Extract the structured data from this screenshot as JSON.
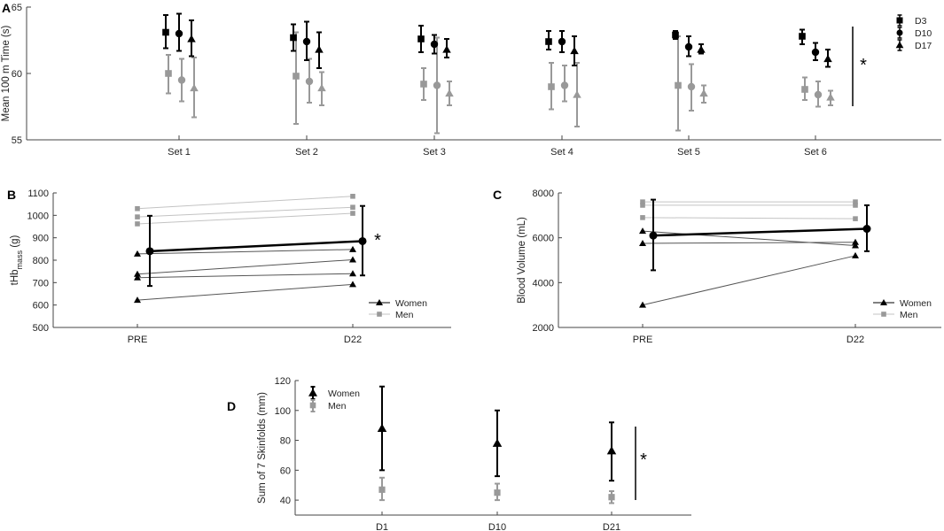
{
  "colors": {
    "black": "#000000",
    "gray": "#999999",
    "lightgray": "#c3c3c3",
    "axis": "#444444"
  },
  "chart_data": [
    {
      "id": "A",
      "panel_label": "A",
      "type": "scatter",
      "ylabel": "Mean 100 m Time (s)",
      "yticks": [
        "55",
        "60",
        "65"
      ],
      "ylim": [
        55,
        65
      ],
      "categories": [
        "Set 1",
        "Set 2",
        "Set 3",
        "Set 4",
        "Set 5",
        "Set 6"
      ],
      "legend": [
        "D3",
        "D10",
        "D17"
      ],
      "annotation": "*",
      "series": [
        {
          "name": "D3 Women",
          "day": "D3",
          "group": "Women",
          "marker": "square",
          "color": "#000000",
          "mean": [
            63.1,
            62.7,
            62.6,
            62.4,
            62.9,
            62.8
          ],
          "lo": [
            61.9,
            61.7,
            61.6,
            61.8,
            62.6,
            62.2
          ],
          "hi": [
            64.4,
            63.7,
            63.6,
            63.2,
            63.2,
            63.3
          ]
        },
        {
          "name": "D10 Women",
          "day": "D10",
          "group": "Women",
          "marker": "circle",
          "color": "#000000",
          "mean": [
            63.0,
            62.4,
            62.2,
            62.4,
            62.0,
            61.6
          ],
          "lo": [
            61.7,
            61.0,
            61.5,
            61.6,
            61.3,
            61.0
          ],
          "hi": [
            64.5,
            63.9,
            62.9,
            63.2,
            62.8,
            62.3
          ]
        },
        {
          "name": "D17 Women",
          "day": "D17",
          "group": "Women",
          "marker": "triangle",
          "color": "#000000",
          "mean": [
            62.6,
            61.8,
            61.8,
            61.7,
            61.8,
            61.1
          ],
          "lo": [
            61.3,
            60.4,
            61.2,
            60.6,
            61.5,
            60.5
          ],
          "hi": [
            64.0,
            63.1,
            62.6,
            62.8,
            62.2,
            61.8
          ]
        },
        {
          "name": "D3 Men",
          "day": "D3",
          "group": "Men",
          "marker": "square",
          "color": "#999999",
          "mean": [
            60.0,
            59.8,
            59.2,
            59.0,
            59.1,
            58.8
          ],
          "lo": [
            58.5,
            56.2,
            58.0,
            57.3,
            55.7,
            58.0
          ],
          "hi": [
            61.4,
            63.1,
            60.4,
            60.8,
            62.8,
            59.7
          ]
        },
        {
          "name": "D10 Men",
          "day": "D10",
          "group": "Men",
          "marker": "circle",
          "color": "#999999",
          "mean": [
            59.5,
            59.4,
            59.1,
            59.1,
            59.0,
            58.4
          ],
          "lo": [
            57.9,
            57.8,
            55.5,
            57.9,
            57.2,
            57.5
          ],
          "hi": [
            61.1,
            61.1,
            62.7,
            60.6,
            60.7,
            59.4
          ]
        },
        {
          "name": "D17 Men",
          "day": "D17",
          "group": "Men",
          "marker": "triangle",
          "color": "#999999",
          "mean": [
            58.9,
            58.9,
            58.5,
            58.4,
            58.5,
            58.2
          ],
          "lo": [
            56.7,
            57.6,
            57.6,
            56.0,
            57.8,
            57.6
          ],
          "hi": [
            61.2,
            60.1,
            59.4,
            60.8,
            59.1,
            58.7
          ]
        }
      ]
    },
    {
      "id": "B",
      "panel_label": "B",
      "type": "line",
      "ylabel_main": "tHb",
      "ylabel_sub": "mass",
      "ylabel_unit": "(g)",
      "yticks": [
        "500",
        "600",
        "700",
        "800",
        "900",
        "1000",
        "1100"
      ],
      "ylim": [
        500,
        1100
      ],
      "categories": [
        "PRE",
        "D22"
      ],
      "legend": [
        "Women",
        "Men"
      ],
      "annotation": "*",
      "men_lines": [
        [
          1030,
          1085
        ],
        [
          993,
          1036
        ],
        [
          962,
          1009
        ]
      ],
      "women_lines": [
        [
          828,
          848
        ],
        [
          738,
          802
        ],
        [
          722,
          740
        ],
        [
          622,
          692
        ]
      ],
      "mean": {
        "values": [
          840,
          885
        ],
        "lo": [
          685,
          732
        ],
        "hi": [
          998,
          1042
        ]
      }
    },
    {
      "id": "C",
      "panel_label": "C",
      "type": "line",
      "ylabel": "Blood Volume (mL)",
      "yticks": [
        "2000",
        "4000",
        "6000",
        "8000"
      ],
      "ylim": [
        2000,
        8000
      ],
      "categories": [
        "PRE",
        "D22"
      ],
      "legend": [
        "Women",
        "Men"
      ],
      "men_lines": [
        [
          7600,
          7600
        ],
        [
          7450,
          7450
        ],
        [
          6900,
          6850
        ]
      ],
      "women_lines": [
        [
          6300,
          5650
        ],
        [
          5750,
          5800
        ],
        [
          3000,
          5200
        ]
      ],
      "mean": {
        "values": [
          6100,
          6400
        ],
        "lo": [
          4550,
          5400
        ],
        "hi": [
          7700,
          7450
        ]
      }
    },
    {
      "id": "D",
      "panel_label": "D",
      "type": "scatter",
      "ylabel": "Sum of 7 Skinfolds (mm)",
      "yticks": [
        "40",
        "60",
        "80",
        "100",
        "120"
      ],
      "ylim": [
        30,
        120
      ],
      "categories": [
        "D1",
        "D10",
        "D21"
      ],
      "legend": [
        "Women",
        "Men"
      ],
      "annotation": "*",
      "series": [
        {
          "name": "Women",
          "marker": "triangle",
          "color": "#000000",
          "mean": [
            88,
            78,
            73
          ],
          "lo": [
            60,
            56,
            53
          ],
          "hi": [
            116,
            100,
            92
          ]
        },
        {
          "name": "Men",
          "marker": "square",
          "color": "#999999",
          "mean": [
            47,
            45,
            42
          ],
          "lo": [
            40,
            40,
            38
          ],
          "hi": [
            55,
            51,
            46
          ]
        }
      ]
    }
  ]
}
